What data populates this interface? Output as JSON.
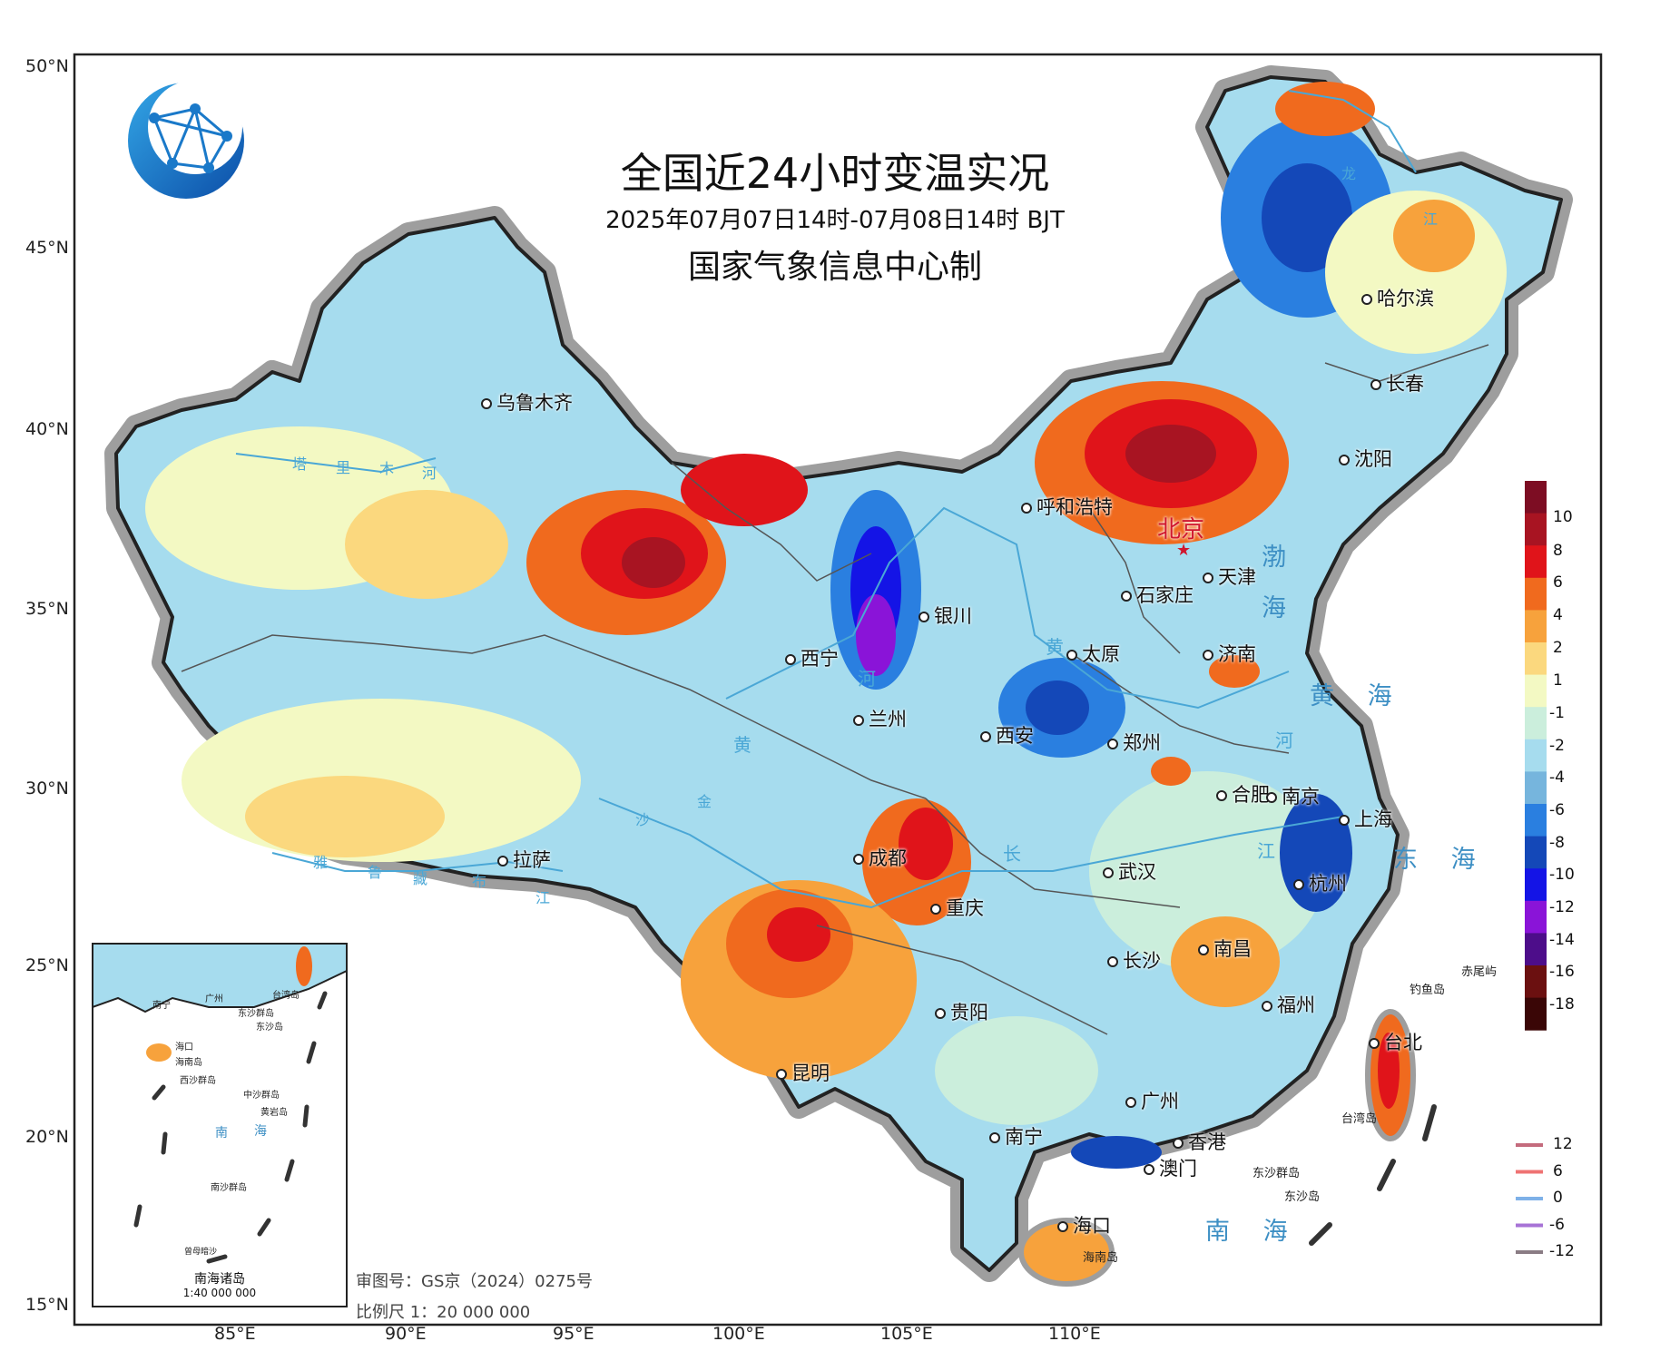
{
  "map": {
    "title": "全国近24小时变温实况",
    "subtitle": "2025年07月07日14时-07月08日14时 BJT",
    "producer": "国家气象信息中心制",
    "latitude_labels": [
      "50°N",
      "45°N",
      "40°N",
      "35°N",
      "30°N",
      "25°N",
      "20°N",
      "15°N"
    ],
    "longitude_labels": [
      "85°E",
      "90°E",
      "95°E",
      "100°E",
      "105°E",
      "110°E"
    ],
    "capital": "北京",
    "cities": [
      "哈尔滨",
      "长春",
      "沈阳",
      "乌鲁木齐",
      "呼和浩特",
      "天津",
      "石家庄",
      "银川",
      "太原",
      "济南",
      "西宁",
      "兰州",
      "西安",
      "郑州",
      "合肥",
      "南京",
      "上海",
      "杭州",
      "武汉",
      "成都",
      "拉萨",
      "重庆",
      "长沙",
      "南昌",
      "福州",
      "贵阳",
      "昆明",
      "台北",
      "广州",
      "南宁",
      "香港",
      "澳门",
      "海口"
    ],
    "seas": [
      "渤",
      "海",
      "黄 海",
      "东 海",
      "南 海"
    ],
    "rivers": [
      "塔",
      "里",
      "木",
      "河",
      "黄",
      "河",
      "黄",
      "河",
      "长",
      "江",
      "雅",
      "鲁",
      "藏",
      "布",
      "江",
      "金",
      "沙",
      "龙",
      "江"
    ],
    "islands": [
      "赤尾屿",
      "钓鱼岛",
      "台湾岛",
      "东沙群岛",
      "东沙岛",
      "海南岛"
    ],
    "inset": {
      "title": "南海诸岛",
      "scale": "1:40 000 000",
      "labels": [
        "南宁",
        "广州",
        "台湾岛",
        "东沙群岛",
        "东沙岛",
        "海口",
        "海南岛",
        "西沙群岛",
        "中沙群岛",
        "黄岩岛",
        "南",
        "海",
        "南沙群岛",
        "曾母暗沙"
      ]
    },
    "map_number": "审图号：GS京（2024）0275号",
    "scale_text": "比例尺 1：20 000 000",
    "logo_icon": "globe-network-logo-icon",
    "colors": {
      "frame": "#222222",
      "border_halo": "#9e9e9e",
      "province_line": "#555555",
      "river": "#4aa7d6"
    }
  },
  "legend": {
    "fill_values": [
      "10",
      "8",
      "6",
      "4",
      "2",
      "1",
      "-1",
      "-2",
      "-4",
      "-6",
      "-8",
      "-10",
      "-12",
      "-14",
      "-16",
      "-18"
    ],
    "fill_colors": [
      "#7d0d23",
      "#a81422",
      "#e0141a",
      "#f06a1e",
      "#f7a23c",
      "#fbd87e",
      "#f3f9c3",
      "#cbeedc",
      "#a6dcee",
      "#76b5dd",
      "#2a7fe0",
      "#1448b8",
      "#1414e6",
      "#8a14d8",
      "#4d0d8a",
      "#6b1010",
      "#3a0606"
    ],
    "line_values": [
      "12",
      "6",
      "0",
      "-6",
      "-12"
    ],
    "line_colors": [
      "#c46b7d",
      "#ef7373",
      "#7eb1e8",
      "#a773d6",
      "#8a7c84"
    ]
  }
}
